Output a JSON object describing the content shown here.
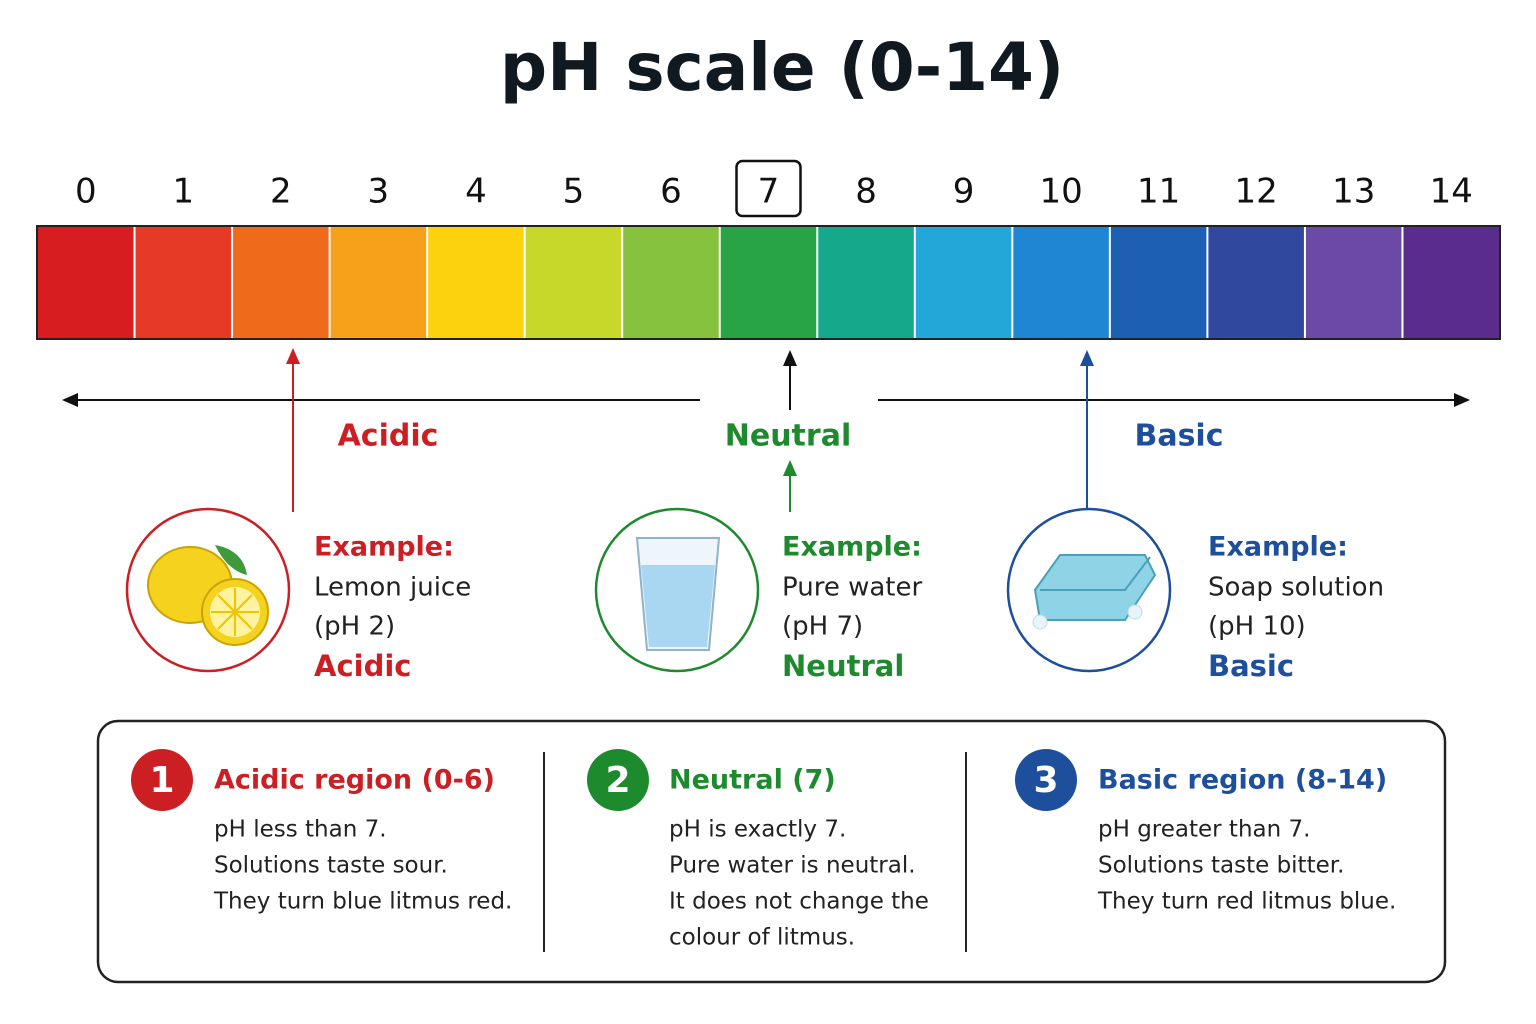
{
  "title": "pH scale (0-14)",
  "scale": [
    {
      "label": 0,
      "color": "#d71d1f"
    },
    {
      "label": 1,
      "color": "#e63a26"
    },
    {
      "label": 2,
      "color": "#f06a1c"
    },
    {
      "label": 3,
      "color": "#f7a11a"
    },
    {
      "label": 4,
      "color": "#fcd20f"
    },
    {
      "label": 5,
      "color": "#c8d82a"
    },
    {
      "label": 6,
      "color": "#86c23e"
    },
    {
      "label": 7,
      "color": "#28a447",
      "boxed": true
    },
    {
      "label": 8,
      "color": "#16a88b"
    },
    {
      "label": 9,
      "color": "#23a6d8"
    },
    {
      "label": 10,
      "color": "#1e86d2"
    },
    {
      "label": 11,
      "color": "#1d5fb2"
    },
    {
      "label": 12,
      "color": "#30489e"
    },
    {
      "label": 13,
      "color": "#6b49a4"
    },
    {
      "label": 14,
      "color": "#5a2c8e"
    }
  ],
  "regions": [
    {
      "label": "Acidic",
      "color": "#cc1f24"
    },
    {
      "label": "Neutral",
      "color": "#1e8a2e"
    },
    {
      "label": "Basic",
      "color": "#1d4f9c"
    }
  ],
  "examples": [
    {
      "heading": "Example:",
      "item": "Lemon juice",
      "ph": "(pH 2)",
      "category": "Acidic",
      "color": "#cc1f24"
    },
    {
      "heading": "Example:",
      "item": "Pure water",
      "ph": "(pH 7)",
      "category": "Neutral",
      "color": "#1e8a2e"
    },
    {
      "heading": "Example:",
      "item": "Soap solution",
      "ph": "(pH 10)",
      "category": "Basic",
      "color": "#1d4f9c"
    }
  ],
  "summary": [
    {
      "number": 1,
      "heading": "Acidic region (0-6)",
      "color": "#cc1f24",
      "lines": [
        "pH less than 7.",
        "Solutions taste sour.",
        "They turn blue litmus red."
      ]
    },
    {
      "number": 2,
      "heading": "Neutral (7)",
      "color": "#1e8a2e",
      "lines": [
        "pH is exactly 7.",
        "Pure water is neutral.",
        "It does not change the",
        "colour of litmus."
      ]
    },
    {
      "number": 3,
      "heading": "Basic region (8-14)",
      "color": "#1d4f9c",
      "lines": [
        "pH greater than 7.",
        "Solutions taste bitter.",
        "They turn red litmus blue."
      ]
    }
  ]
}
